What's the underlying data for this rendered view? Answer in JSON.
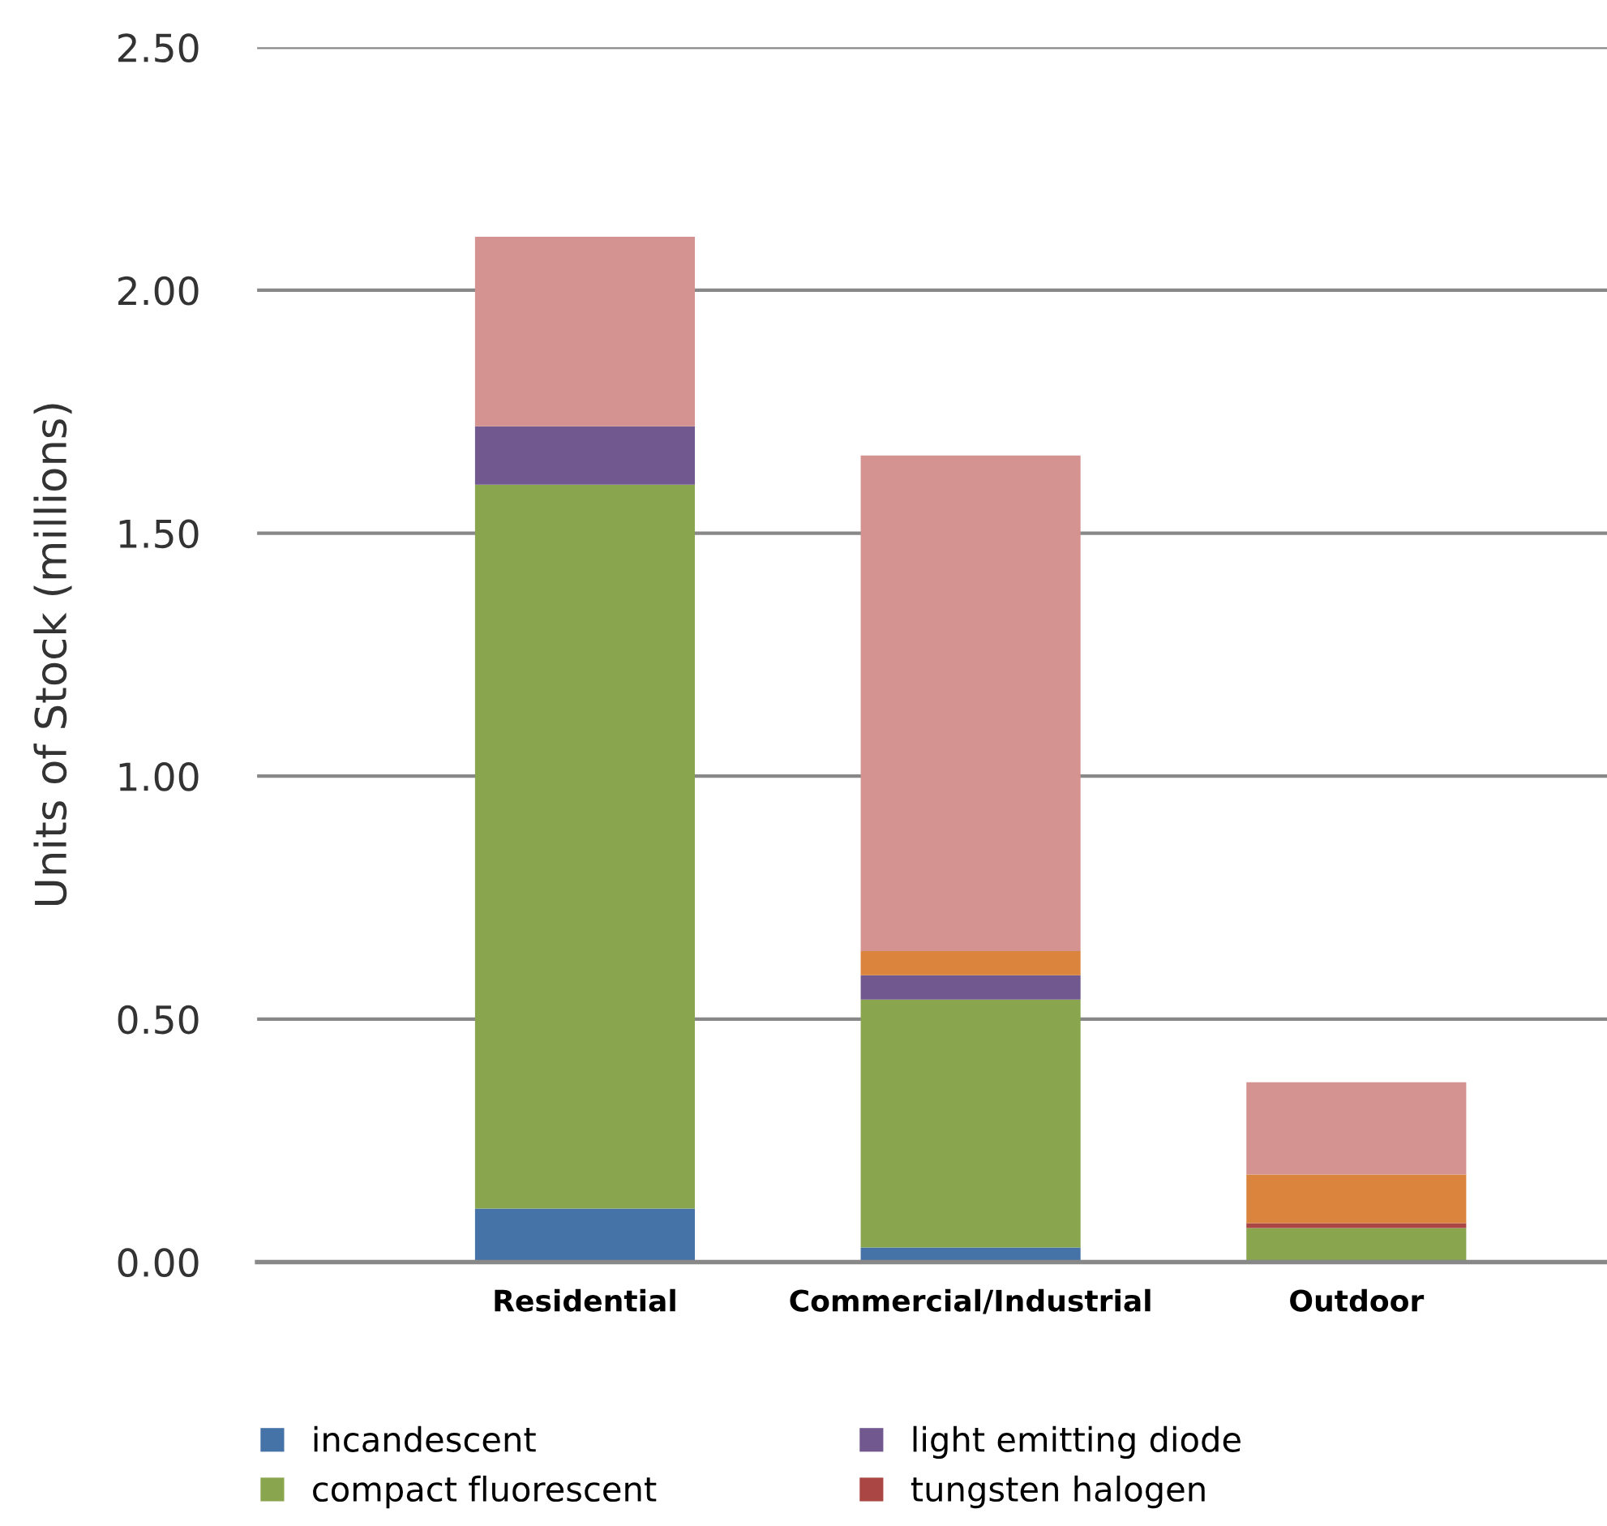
{
  "chart_data": {
    "type": "bar",
    "stacked": true,
    "ylabel": "Units of Stock (millions)",
    "categories": [
      "Residential",
      "Commercial/Industrial",
      "Outdoor"
    ],
    "series": [
      {
        "name": "incandescent",
        "color": "#4572a7",
        "values": [
          0.11,
          0.03,
          0
        ]
      },
      {
        "name": "compact fluorescent",
        "color": "#89a54e",
        "values": [
          1.49,
          0.51,
          0.07
        ]
      },
      {
        "name": "light emitting diode",
        "color": "#71588f",
        "values": [
          0.12,
          0.05,
          0
        ]
      },
      {
        "name": "tungsten halogen",
        "color": "#aa4643",
        "values": [
          0,
          0,
          0.01
        ]
      },
      {
        "color": "#db843d",
        "values": [
          0,
          0.05,
          0.1
        ]
      },
      {
        "color": "#d49391",
        "values": [
          0.39,
          1.02,
          0.19
        ]
      }
    ],
    "ylim": [
      0,
      2.5
    ],
    "yticks": [
      {
        "value": 0,
        "label": "0.00"
      },
      {
        "value": 0.5,
        "label": "0.50"
      },
      {
        "value": 1,
        "label": "1.00"
      },
      {
        "value": 1.5,
        "label": "1.50"
      },
      {
        "value": 2,
        "label": "2.00"
      },
      {
        "value": 2.5,
        "label": "2.50"
      }
    ],
    "grid": "y",
    "legend": "bottom"
  }
}
